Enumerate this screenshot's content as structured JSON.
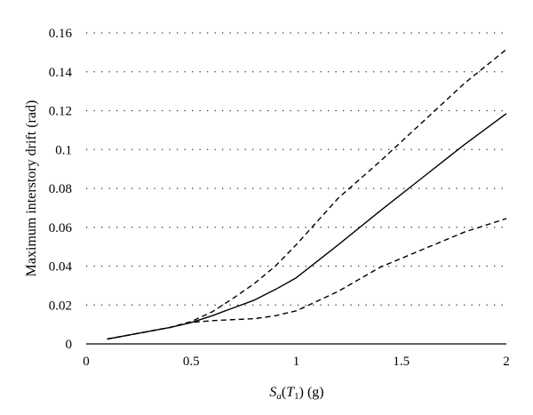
{
  "chart_data": {
    "type": "line",
    "title": "",
    "xlabel": {
      "s": "S",
      "a": "a",
      "open": "(",
      "t": "T",
      "one": "1",
      "close": ")",
      "unit": " (g)"
    },
    "ylabel": "Maximum interstory drift (rad)",
    "xlim": [
      0,
      2
    ],
    "ylim": [
      0,
      0.16
    ],
    "x_ticks": [
      0,
      0.5,
      1,
      1.5,
      2
    ],
    "x_tick_labels": [
      "0",
      "0.5",
      "1",
      "1.5",
      "2"
    ],
    "y_ticks": [
      0,
      0.02,
      0.04,
      0.06,
      0.08,
      0.1,
      0.12,
      0.14,
      0.16
    ],
    "y_tick_labels": [
      "0",
      "0.02",
      "0.04",
      "0.06",
      "0.08",
      "0.1",
      "0.12",
      "0.14",
      "0.16"
    ],
    "grid": "horizontal dotted",
    "series": [
      {
        "style": "solid",
        "x": [
          0.1,
          0.2,
          0.3,
          0.4,
          0.5,
          0.6,
          0.7,
          0.8,
          0.9,
          1.0,
          1.2,
          1.4,
          1.6,
          1.8,
          2.0
        ],
        "y": [
          0.0025,
          0.0045,
          0.0065,
          0.0085,
          0.011,
          0.0145,
          0.0185,
          0.0225,
          0.028,
          0.034,
          0.051,
          0.0685,
          0.0855,
          0.1025,
          0.1185
        ]
      },
      {
        "style": "dashed",
        "x": [
          0.1,
          0.2,
          0.3,
          0.4,
          0.5,
          0.6,
          0.7,
          0.8,
          0.9,
          1.0,
          1.2,
          1.4,
          1.6,
          1.8,
          2.0
        ],
        "y": [
          0.0025,
          0.0045,
          0.0065,
          0.0085,
          0.0115,
          0.0165,
          0.0235,
          0.031,
          0.04,
          0.051,
          0.075,
          0.094,
          0.114,
          0.134,
          0.1515
        ]
      },
      {
        "style": "dashed",
        "x": [
          0.1,
          0.2,
          0.3,
          0.4,
          0.5,
          0.6,
          0.7,
          0.8,
          0.9,
          1.0,
          1.2,
          1.4,
          1.6,
          1.8,
          2.0
        ],
        "y": [
          0.0025,
          0.0045,
          0.0065,
          0.0085,
          0.011,
          0.012,
          0.0125,
          0.013,
          0.0145,
          0.017,
          0.027,
          0.0395,
          0.0485,
          0.0575,
          0.0645
        ]
      }
    ]
  }
}
